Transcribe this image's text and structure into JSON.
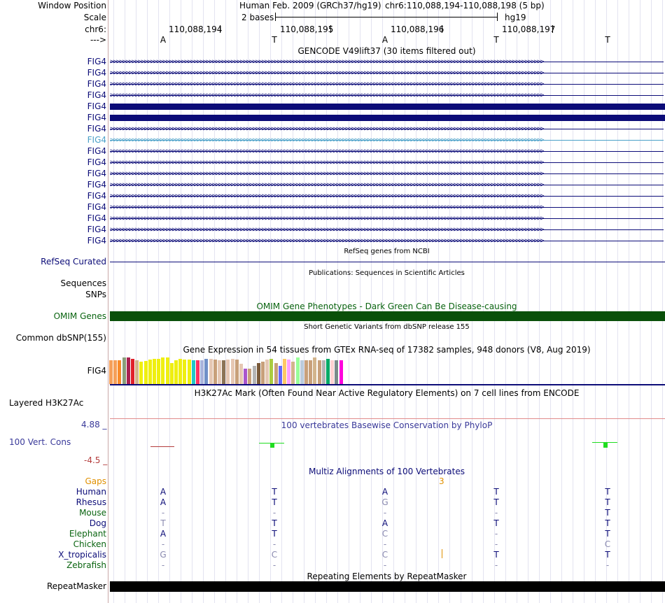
{
  "header": {
    "window_position_label": "Window Position",
    "scale_label": "Scale",
    "chrom_label": "chr6:",
    "strand_label": "--->",
    "assembly": "Human Feb. 2009 (GRCh37/hg19)",
    "position": "chr6:110,088,194-110,088,198 (5 bp)",
    "scale_text": "2 bases",
    "db": "hg19",
    "coords": [
      "110,088,194",
      "110,088,195",
      "110,088,196",
      "110,088,197"
    ],
    "bases": [
      "A",
      "T",
      "A",
      "T",
      "T"
    ]
  },
  "gencode": {
    "title": "GENCODE V49lift37 (30 items filtered out)",
    "gene_label": "FIG4",
    "rows": [
      {
        "label": "FIG4",
        "style": "arrows"
      },
      {
        "label": "FIG4",
        "style": "arrows"
      },
      {
        "label": "FIG4",
        "style": "arrows"
      },
      {
        "label": "FIG4",
        "style": "arrows"
      },
      {
        "label": "FIG4",
        "style": "solid"
      },
      {
        "label": "FIG4",
        "style": "solid"
      },
      {
        "label": "FIG4",
        "style": "arrows"
      },
      {
        "label": "FIG4",
        "style": "arrows-light"
      },
      {
        "label": "FIG4",
        "style": "arrows"
      },
      {
        "label": "FIG4",
        "style": "arrows"
      },
      {
        "label": "FIG4",
        "style": "arrows"
      },
      {
        "label": "FIG4",
        "style": "arrows"
      },
      {
        "label": "FIG4",
        "style": "arrows"
      },
      {
        "label": "FIG4",
        "style": "arrows"
      },
      {
        "label": "FIG4",
        "style": "arrows"
      },
      {
        "label": "FIG4",
        "style": "arrows"
      },
      {
        "label": "FIG4",
        "style": "arrows"
      }
    ]
  },
  "tracks": {
    "refseq_title": "RefSeq genes from NCBI",
    "refseq_label": "RefSeq Curated",
    "pubs_title": "Publications: Sequences in Scientific Articles",
    "pubs_label1": "Sequences",
    "pubs_label2": "SNPs",
    "omim_title": "OMIM Gene Phenotypes - Dark Green Can Be Disease-causing",
    "omim_label": "OMIM Genes",
    "dbsnp_title": "Short Genetic Variants from dbSNP release 155",
    "dbsnp_label": "Common dbSNP(155)",
    "gtex_title": "Gene Expression in 54 tissues from GTEx RNA-seq of 17382 samples, 948 donors (V8, Aug 2019)",
    "gtex_label": "FIG4",
    "h3k27_title": "H3K27Ac Mark (Often Found Near Active Regulatory Elements) on 7 cell lines from ENCODE",
    "h3k27_label": "Layered H3K27Ac",
    "phylop_title": "100 vertebrates Basewise Conservation by PhyloP",
    "phylop_label": "100 Vert. Cons",
    "phylop_max": "4.88 _",
    "phylop_min": "-4.5 _",
    "multiz_title": "Multiz Alignments of 100 Vertebrates",
    "gaps_label": "Gaps",
    "gap_count": "3",
    "repeat_title": "Repeating Elements by RepeatMasker",
    "repeat_label": "RepeatMasker"
  },
  "gtex_bars": [
    {
      "color": "#f5a05a",
      "level": 0.71
    },
    {
      "color": "#f5a05a",
      "level": 0.71
    },
    {
      "color": "#fa8b2a",
      "level": 0.71
    },
    {
      "color": "#8a9e7a",
      "level": 0.8
    },
    {
      "color": "#aa2050",
      "level": 0.8
    },
    {
      "color": "#e0202a",
      "level": 0.76
    },
    {
      "color": "#d2b48c",
      "level": 0.71
    },
    {
      "color": "#efef10",
      "level": 0.66
    },
    {
      "color": "#efef10",
      "level": 0.68
    },
    {
      "color": "#efef10",
      "level": 0.73
    },
    {
      "color": "#efef10",
      "level": 0.76
    },
    {
      "color": "#efef10",
      "level": 0.76
    },
    {
      "color": "#efef10",
      "level": 0.8
    },
    {
      "color": "#efef10",
      "level": 0.8
    },
    {
      "color": "#efef10",
      "level": 0.63
    },
    {
      "color": "#efef10",
      "level": 0.71
    },
    {
      "color": "#efef10",
      "level": 0.76
    },
    {
      "color": "#efef10",
      "level": 0.73
    },
    {
      "color": "#efef10",
      "level": 0.73
    },
    {
      "color": "#20c8c8",
      "level": 0.71
    },
    {
      "color": "#ff3060",
      "level": 0.71
    },
    {
      "color": "#aab4dc",
      "level": 0.71
    },
    {
      "color": "#7090c8",
      "level": 0.76
    },
    {
      "color": "#e6c8b4",
      "level": 0.76
    },
    {
      "color": "#c8a07a",
      "level": 0.73
    },
    {
      "color": "#e6c8b4",
      "level": 0.71
    },
    {
      "color": "#8b7355",
      "level": 0.71
    },
    {
      "color": "#e6c8b4",
      "level": 0.73
    },
    {
      "color": "#e6c8b4",
      "level": 0.76
    },
    {
      "color": "#c8a07a",
      "level": 0.73
    },
    {
      "color": "#e6c8b4",
      "level": 0.6
    },
    {
      "color": "#aa55cc",
      "level": 0.46
    },
    {
      "color": "#c8a07a",
      "level": 0.46
    },
    {
      "color": "#b4b4b4",
      "level": 0.54
    },
    {
      "color": "#7a5a3a",
      "level": 0.63
    },
    {
      "color": "#c8a07a",
      "level": 0.66
    },
    {
      "color": "#e6c8b4",
      "level": 0.73
    },
    {
      "color": "#aacc40",
      "level": 0.76
    },
    {
      "color": "#c8a07a",
      "level": 0.63
    },
    {
      "color": "#6666ff",
      "level": 0.54
    },
    {
      "color": "#ffc864",
      "level": 0.76
    },
    {
      "color": "#ffa0ff",
      "level": 0.73
    },
    {
      "color": "#d2b48c",
      "level": 0.66
    },
    {
      "color": "#99ff99",
      "level": 0.8
    },
    {
      "color": "#bbccdd",
      "level": 0.71
    },
    {
      "color": "#c8a07a",
      "level": 0.71
    },
    {
      "color": "#c8a07a",
      "level": 0.71
    },
    {
      "color": "#d2b48c",
      "level": 0.8
    },
    {
      "color": "#c8a07a",
      "level": 0.71
    },
    {
      "color": "#b4b4b4",
      "level": 0.71
    },
    {
      "color": "#00aa66",
      "level": 0.76
    },
    {
      "color": "#ffd2d2",
      "level": 0.71
    },
    {
      "color": "#7a8a8a",
      "level": 0.71
    },
    {
      "color": "#ff00dd",
      "level": 0.71
    }
  ],
  "species": [
    {
      "name": "Human",
      "color": "#0c0c78",
      "bases": [
        "A",
        "T",
        "A",
        "T",
        "T"
      ]
    },
    {
      "name": "Rhesus",
      "color": "#0c0c78",
      "bases": [
        "A",
        "T",
        "G",
        "T",
        "T"
      ]
    },
    {
      "name": "Mouse",
      "color": "#0a6410",
      "bases": [
        "-",
        "-",
        "-",
        "-",
        "T"
      ]
    },
    {
      "name": "Dog",
      "color": "#0c0c78",
      "bases": [
        "T",
        "T",
        "A",
        "T",
        "T"
      ]
    },
    {
      "name": "Elephant",
      "color": "#0a6410",
      "bases": [
        "A",
        "T",
        "C",
        "-",
        "T"
      ]
    },
    {
      "name": "Chicken",
      "color": "#0a6410",
      "bases": [
        "-",
        "-",
        "-",
        "-",
        "C"
      ]
    },
    {
      "name": "X_tropicalis",
      "color": "#0c0c78",
      "bases": [
        "G",
        "C",
        "C",
        "T",
        "T"
      ]
    },
    {
      "name": "Zebrafish",
      "color": "#0a6410",
      "bases": [
        "-",
        "-",
        "-",
        "-",
        "-"
      ]
    }
  ],
  "species_base_colors": [
    [
      "#0c0c78",
      "#0c0c78",
      "#0c0c78",
      "#0c0c78",
      "#0c0c78"
    ],
    [
      "#0c0c78",
      "#0c0c78",
      "#8a8ab0",
      "#0c0c78",
      "#0c0c78"
    ],
    [
      "#8a8ab0",
      "#8a8ab0",
      "#8a8ab0",
      "#8a8ab0",
      "#0c0c78"
    ],
    [
      "#8a8ab0",
      "#0c0c78",
      "#0c0c78",
      "#0c0c78",
      "#0c0c78"
    ],
    [
      "#0c0c78",
      "#0c0c78",
      "#8a8ab0",
      "#8a8ab0",
      "#0c0c78"
    ],
    [
      "#8a8ab0",
      "#8a8ab0",
      "#8a8ab0",
      "#8a8ab0",
      "#8a8ab0"
    ],
    [
      "#8a8ab0",
      "#8a8ab0",
      "#8a8ab0",
      "#0c0c78",
      "#0c0c78"
    ],
    [
      "#8a8ab0",
      "#8a8ab0",
      "#8a8ab0",
      "#8a8ab0",
      "#8a8ab0"
    ]
  ],
  "colors": {
    "navy": "#0c0c78",
    "omim": "#0a500a",
    "omim_title": "#0a6410",
    "phylop_title": "#3a3a9a",
    "gaps": "#e09000",
    "light_arrows": "#4aa0c8",
    "phylop_green": "#20dd20",
    "phylop_neg": "#b43c3c"
  }
}
